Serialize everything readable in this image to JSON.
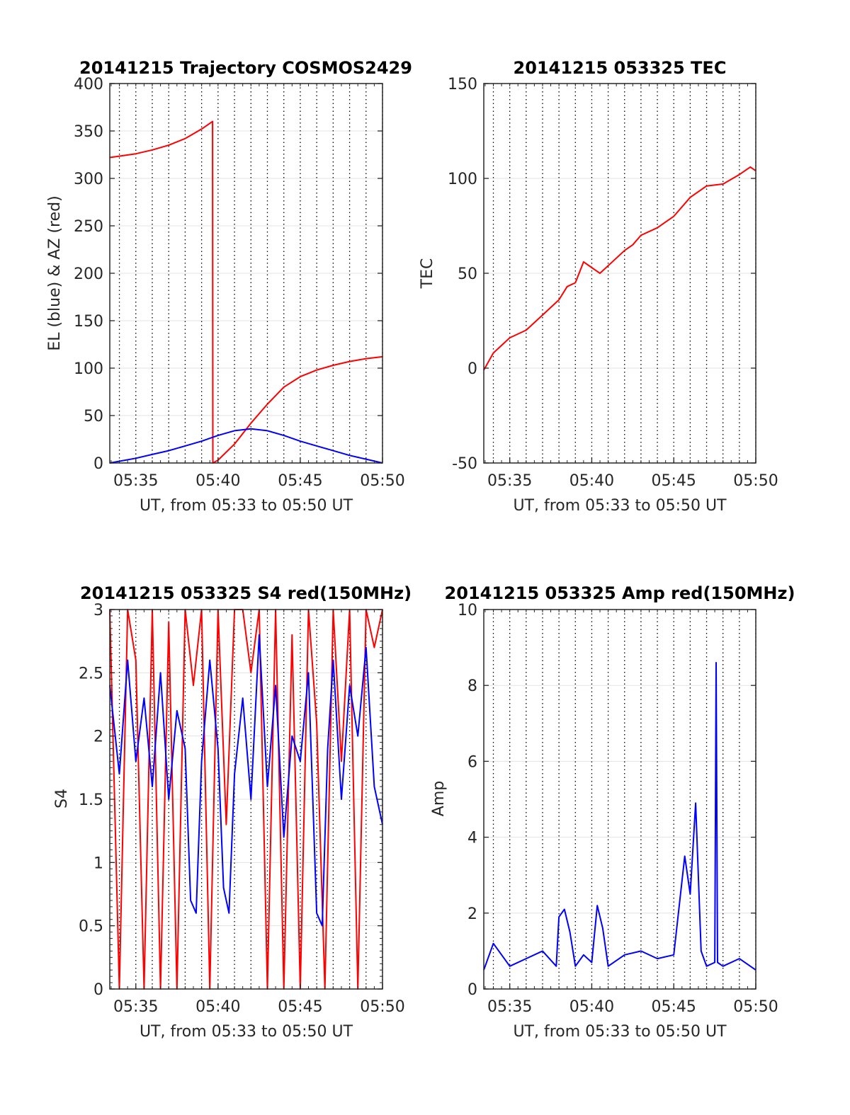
{
  "chart_data": [
    {
      "id": "traj",
      "type": "line",
      "title": "20141215 Trajectory COSMOS2429",
      "xlabel": "UT, from 05:33 to 05:50 UT",
      "ylabel": "EL (blue) & AZ (red)",
      "xlim": [
        "05:33:25",
        "05:50:00"
      ],
      "ylim": [
        0,
        400
      ],
      "yticks": [
        0,
        50,
        100,
        150,
        200,
        250,
        300,
        350,
        400
      ],
      "ytick_labels": [
        "0",
        "50",
        "100",
        "150",
        "200",
        "250",
        "300",
        "350",
        "400"
      ],
      "xtick_labels": [
        "05:35",
        "05:40",
        "05:45",
        "05:50"
      ],
      "grid": "minute-dotted",
      "series": [
        {
          "color": "#ff0000",
          "x": [
            "05:33:25",
            "05:35:00",
            "05:36:00",
            "05:37:00",
            "05:38:00",
            "05:39:00",
            "05:39:40",
            "05:39:41",
            "05:40:00",
            "05:41:00",
            "05:42:00",
            "05:43:00",
            "05:44:00",
            "05:45:00",
            "05:46:00",
            "05:47:00",
            "05:48:00",
            "05:49:00",
            "05:50:00"
          ],
          "y": [
            322,
            326,
            330,
            335,
            342,
            352,
            360,
            0,
            3,
            20,
            42,
            62,
            80,
            91,
            98,
            103,
            107,
            110,
            112
          ]
        },
        {
          "color": "#0000ff",
          "x": [
            "05:33:25",
            "05:35:00",
            "05:36:00",
            "05:37:00",
            "05:38:00",
            "05:39:00",
            "05:40:00",
            "05:41:00",
            "05:42:00",
            "05:43:00",
            "05:44:00",
            "05:45:00",
            "05:46:00",
            "05:47:00",
            "05:48:00",
            "05:49:00",
            "05:50:00"
          ],
          "y": [
            0,
            5,
            9,
            13,
            18,
            23,
            29,
            34,
            36,
            34,
            29,
            23,
            18,
            13,
            8,
            4,
            0
          ]
        }
      ]
    },
    {
      "id": "tec",
      "type": "line",
      "title": "20141215 053325 TEC",
      "xlabel": "UT, from 05:33 to 05:50 UT",
      "ylabel": "TEC",
      "xlim": [
        "05:33:25",
        "05:50:00"
      ],
      "ylim": [
        -50,
        150
      ],
      "yticks": [
        -50,
        0,
        50,
        100,
        150
      ],
      "ytick_labels": [
        "-50",
        "0",
        "50",
        "100",
        "150"
      ],
      "xtick_labels": [
        "05:35",
        "05:40",
        "05:45",
        "05:50"
      ],
      "grid": "minute-dotted",
      "series": [
        {
          "color": "#ff0000",
          "x": [
            "05:33:25",
            "05:34:00",
            "05:35:00",
            "05:36:00",
            "05:37:00",
            "05:38:00",
            "05:38:30",
            "05:39:00",
            "05:39:30",
            "05:40:00",
            "05:40:30",
            "05:41:00",
            "05:42:00",
            "05:42:30",
            "05:43:00",
            "05:44:00",
            "05:45:00",
            "05:46:00",
            "05:47:00",
            "05:48:00",
            "05:49:00",
            "05:49:40",
            "05:50:00"
          ],
          "y": [
            -1,
            8,
            16,
            20,
            28,
            36,
            43,
            45,
            56,
            53,
            50,
            54,
            62,
            65,
            70,
            74,
            80,
            90,
            96,
            97,
            102,
            106,
            104
          ]
        }
      ]
    },
    {
      "id": "s4",
      "type": "line",
      "title": "20141215 053325 S4 red(150MHz)",
      "xlabel": "UT, from 05:33 to 05:50 UT",
      "ylabel": "S4",
      "xlim": [
        "05:33:25",
        "05:50:00"
      ],
      "ylim": [
        0,
        3
      ],
      "yticks": [
        0,
        0.5,
        1,
        1.5,
        2,
        2.5,
        3
      ],
      "ytick_labels": [
        "0",
        "0.5",
        "1",
        "1.5",
        "2",
        "2.5",
        "3"
      ],
      "xtick_labels": [
        "05:35",
        "05:40",
        "05:45",
        "05:50"
      ],
      "grid": "minute-dotted",
      "series": [
        {
          "color": "#ff0000",
          "x": [
            "05:33:25",
            "05:34:00",
            "05:34:30",
            "05:35:00",
            "05:35:30",
            "05:36:00",
            "05:36:30",
            "05:37:00",
            "05:37:30",
            "05:38:00",
            "05:38:30",
            "05:39:00",
            "05:39:30",
            "05:40:00",
            "05:40:30",
            "05:41:00",
            "05:41:30",
            "05:42:00",
            "05:42:30",
            "05:43:00",
            "05:43:30",
            "05:44:00",
            "05:44:30",
            "05:45:00",
            "05:45:30",
            "05:46:00",
            "05:46:30",
            "05:47:00",
            "05:47:30",
            "05:48:00",
            "05:48:30",
            "05:49:00",
            "05:49:30",
            "05:50:00"
          ],
          "y": [
            3.0,
            0.0,
            3.0,
            2.6,
            0.0,
            3.0,
            0.0,
            2.9,
            0.0,
            3.0,
            2.4,
            3.0,
            0.0,
            3.0,
            1.3,
            3.0,
            3.0,
            2.5,
            3.0,
            0.0,
            3.0,
            0.0,
            2.8,
            0.0,
            3.0,
            2.1,
            0.0,
            3.0,
            1.8,
            3.0,
            0.0,
            3.0,
            2.7,
            3.0
          ]
        },
        {
          "color": "#0000ff",
          "x": [
            "05:33:25",
            "05:34:00",
            "05:34:30",
            "05:35:00",
            "05:35:30",
            "05:36:00",
            "05:36:30",
            "05:37:00",
            "05:37:30",
            "05:38:00",
            "05:38:20",
            "05:38:40",
            "05:39:00",
            "05:39:30",
            "05:40:00",
            "05:40:20",
            "05:40:40",
            "05:41:00",
            "05:41:30",
            "05:42:00",
            "05:42:30",
            "05:43:00",
            "05:43:30",
            "05:44:00",
            "05:44:30",
            "05:45:00",
            "05:45:30",
            "05:46:00",
            "05:46:20",
            "05:46:40",
            "05:47:00",
            "05:47:30",
            "05:48:00",
            "05:48:30",
            "05:49:00",
            "05:49:30",
            "05:50:00"
          ],
          "y": [
            2.4,
            1.7,
            2.6,
            1.8,
            2.3,
            1.6,
            2.5,
            1.5,
            2.2,
            1.9,
            0.7,
            0.6,
            1.8,
            2.6,
            1.9,
            0.8,
            0.6,
            1.7,
            2.3,
            1.5,
            2.8,
            1.6,
            2.4,
            1.2,
            2.0,
            1.8,
            2.5,
            0.6,
            0.5,
            1.9,
            2.6,
            1.5,
            2.4,
            2.0,
            2.7,
            1.6,
            1.3
          ]
        }
      ]
    },
    {
      "id": "amp",
      "type": "line",
      "title": "20141215 053325 Amp red(150MHz)",
      "xlabel": "UT, from 05:33 to 05:50 UT",
      "ylabel": "Amp",
      "xlim": [
        "05:33:25",
        "05:50:00"
      ],
      "ylim": [
        0,
        10
      ],
      "yticks": [
        0,
        2,
        4,
        6,
        8,
        10
      ],
      "ytick_labels": [
        "0",
        "2",
        "4",
        "6",
        "8",
        "10"
      ],
      "xtick_labels": [
        "05:35",
        "05:40",
        "05:45",
        "05:50"
      ],
      "grid": "minute-dotted",
      "series": [
        {
          "color": "#0000ff",
          "x": [
            "05:33:25",
            "05:34:00",
            "05:35:00",
            "05:36:00",
            "05:37:00",
            "05:37:50",
            "05:38:00",
            "05:38:20",
            "05:38:40",
            "05:39:00",
            "05:39:30",
            "05:40:00",
            "05:40:20",
            "05:40:40",
            "05:41:00",
            "05:42:00",
            "05:43:00",
            "05:44:00",
            "05:45:00",
            "05:45:40",
            "05:46:00",
            "05:46:20",
            "05:46:40",
            "05:47:00",
            "05:47:30",
            "05:47:35",
            "05:47:40",
            "05:48:00",
            "05:49:00",
            "05:50:00"
          ],
          "y": [
            0.5,
            1.2,
            0.6,
            0.8,
            1.0,
            0.6,
            1.9,
            2.1,
            1.5,
            0.6,
            0.9,
            0.7,
            2.2,
            1.6,
            0.6,
            0.9,
            1.0,
            0.8,
            0.9,
            3.5,
            2.5,
            4.9,
            1.0,
            0.6,
            0.7,
            8.6,
            0.7,
            0.6,
            0.8,
            0.5
          ]
        }
      ]
    }
  ]
}
